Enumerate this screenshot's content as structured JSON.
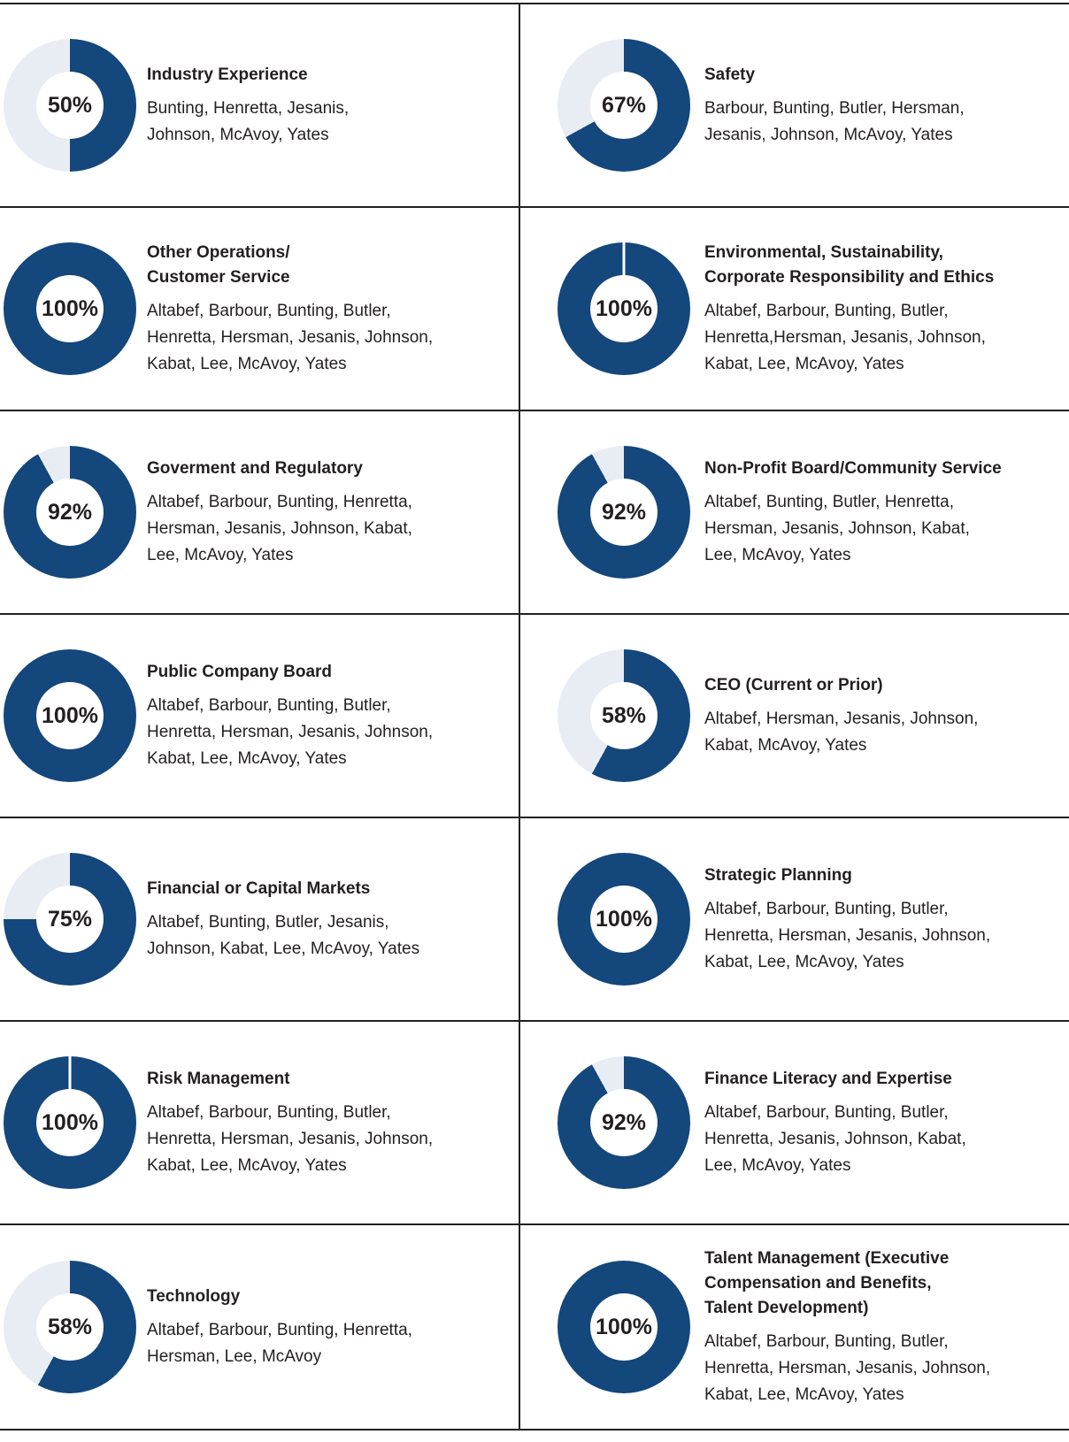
{
  "style": {
    "donut_color": "#14477b",
    "donut_track_color": "#e8edf4",
    "text_color": "#231f20",
    "line_color": "#231f20",
    "background": "#ffffff"
  },
  "chart_data": {
    "type": "pie",
    "subtype": "donut-grid",
    "columns": 2,
    "rows": 7,
    "unit": "percent of directors with skill",
    "charts": [
      {
        "pct": 50,
        "label": "50%",
        "notch": false,
        "title_lines": [
          "Industry Experience"
        ],
        "names_lines": [
          "Bunting, Henretta, Jesanis,",
          "Johnson, McAvoy, Yates"
        ]
      },
      {
        "pct": 67,
        "label": "67%",
        "notch": false,
        "title_lines": [
          "Safety"
        ],
        "names_lines": [
          "Barbour, Bunting, Butler, Hersman,",
          "Jesanis, Johnson, McAvoy, Yates"
        ]
      },
      {
        "pct": 100,
        "label": "100%",
        "notch": false,
        "title_lines": [
          "Other Operations/",
          "Customer Service"
        ],
        "names_lines": [
          "Altabef, Barbour, Bunting, Butler,",
          "Henretta, Hersman, Jesanis, Johnson,",
          "Kabat, Lee, McAvoy, Yates"
        ]
      },
      {
        "pct": 100,
        "label": "100%",
        "notch": true,
        "title_lines": [
          "Environmental, Sustainability,",
          "Corporate Responsibility and Ethics"
        ],
        "names_lines": [
          "Altabef, Barbour, Bunting, Butler,",
          "Henretta,Hersman, Jesanis, Johnson,",
          "Kabat, Lee, McAvoy, Yates"
        ]
      },
      {
        "pct": 92,
        "label": "92%",
        "notch": false,
        "title_lines": [
          "Goverment and Regulatory"
        ],
        "names_lines": [
          "Altabef, Barbour, Bunting, Henretta,",
          "Hersman, Jesanis, Johnson, Kabat,",
          "Lee, McAvoy, Yates"
        ]
      },
      {
        "pct": 92,
        "label": "92%",
        "notch": false,
        "title_lines": [
          "Non-Profit Board/Community Service"
        ],
        "names_lines": [
          "Altabef, Bunting, Butler, Henretta,",
          "Hersman, Jesanis, Johnson, Kabat,",
          "Lee, McAvoy, Yates"
        ]
      },
      {
        "pct": 100,
        "label": "100%",
        "notch": false,
        "title_lines": [
          "Public Company Board"
        ],
        "names_lines": [
          "Altabef, Barbour, Bunting, Butler,",
          "Henretta, Hersman, Jesanis, Johnson,",
          "Kabat, Lee, McAvoy, Yates"
        ]
      },
      {
        "pct": 58,
        "label": "58%",
        "notch": false,
        "title_lines": [
          "CEO (Current or Prior)"
        ],
        "names_lines": [
          "Altabef, Hersman, Jesanis, Johnson,",
          "Kabat, McAvoy, Yates"
        ]
      },
      {
        "pct": 75,
        "label": "75%",
        "notch": false,
        "title_lines": [
          "Financial or Capital Markets"
        ],
        "names_lines": [
          "Altabef, Bunting, Butler, Jesanis,",
          "Johnson, Kabat, Lee, McAvoy, Yates"
        ]
      },
      {
        "pct": 100,
        "label": "100%",
        "notch": false,
        "title_lines": [
          "Strategic Planning"
        ],
        "names_lines": [
          "Altabef, Barbour, Bunting, Butler,",
          "Henretta, Hersman, Jesanis, Johnson,",
          "Kabat, Lee, McAvoy, Yates"
        ]
      },
      {
        "pct": 100,
        "label": "100%",
        "notch": true,
        "title_lines": [
          "Risk Management"
        ],
        "names_lines": [
          "Altabef, Barbour, Bunting, Butler,",
          "Henretta, Hersman, Jesanis, Johnson,",
          "Kabat, Lee, McAvoy, Yates"
        ]
      },
      {
        "pct": 92,
        "label": "92%",
        "notch": false,
        "title_lines": [
          "Finance Literacy and Expertise"
        ],
        "names_lines": [
          "Altabef, Barbour, Bunting, Butler,",
          "Henretta, Jesanis, Johnson, Kabat,",
          "Lee, McAvoy, Yates"
        ]
      },
      {
        "pct": 58,
        "label": "58%",
        "notch": false,
        "title_lines": [
          "Technology"
        ],
        "names_lines": [
          "Altabef, Barbour, Bunting, Henretta,",
          "Hersman, Lee, McAvoy"
        ]
      },
      {
        "pct": 100,
        "label": "100%",
        "notch": false,
        "title_lines": [
          "Talent Management (Executive",
          "Compensation and Benefits,",
          "Talent Development)"
        ],
        "names_lines": [
          "Altabef, Barbour, Bunting, Butler,",
          "Henretta, Hersman, Jesanis, Johnson,",
          "Kabat, Lee, McAvoy, Yates"
        ]
      }
    ]
  }
}
